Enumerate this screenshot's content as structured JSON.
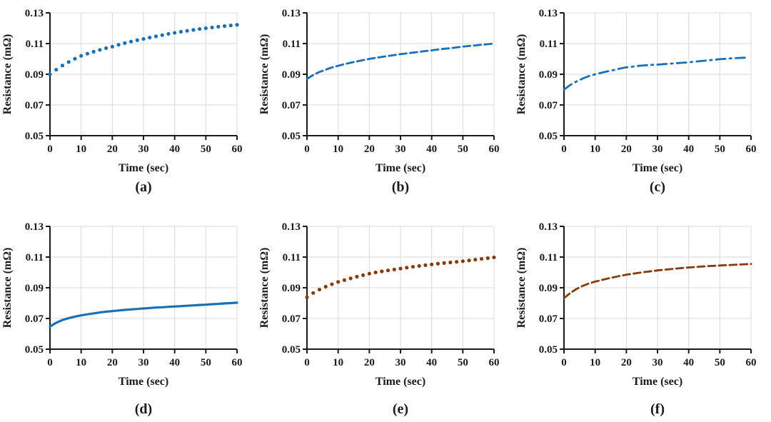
{
  "figure": {
    "background": "#ffffff",
    "text_color": "#1a1a1a",
    "grid_color": "#d9d9d9",
    "axis_color": "#1a1a1a"
  },
  "chart_data": [
    {
      "id": "a",
      "label": "(a)",
      "type": "line",
      "line_style": "dotted",
      "color": "#1b6fb5",
      "title": "",
      "xlabel": "Time (sec)",
      "ylabel": "Resistance (mΩ)",
      "xlim": [
        0,
        60
      ],
      "ylim": [
        0.05,
        0.13
      ],
      "xticks": [
        0,
        10,
        20,
        30,
        40,
        50,
        60
      ],
      "xtick_labels": [
        "0",
        "10",
        "20",
        "30",
        "40",
        "50",
        "60"
      ],
      "yticks": [
        0.05,
        0.07,
        0.09,
        0.11,
        0.13
      ],
      "ytick_labels": [
        "0.05",
        "0.07",
        "0.09",
        "0.11",
        "0.13"
      ],
      "grid": true,
      "legend": "none",
      "x": [
        0,
        2,
        4,
        6,
        8,
        10,
        12,
        14,
        16,
        18,
        20,
        22,
        24,
        26,
        28,
        30,
        32,
        34,
        36,
        38,
        40,
        42,
        44,
        46,
        48,
        50,
        52,
        54,
        56,
        58,
        60
      ],
      "y": [
        0.09,
        0.093,
        0.0957,
        0.098,
        0.1001,
        0.102,
        0.1034,
        0.1047,
        0.1059,
        0.107,
        0.108,
        0.1092,
        0.1103,
        0.1113,
        0.1122,
        0.113,
        0.1139,
        0.1147,
        0.1155,
        0.1163,
        0.117,
        0.1177,
        0.1183,
        0.1189,
        0.1195,
        0.12,
        0.1205,
        0.121,
        0.1214,
        0.1218,
        0.1222
      ]
    },
    {
      "id": "b",
      "label": "(b)",
      "type": "line",
      "line_style": "dashed",
      "color": "#1b6fb5",
      "title": "",
      "xlabel": "Time (sec)",
      "ylabel": "Resistance (mΩ)",
      "xlim": [
        0,
        60
      ],
      "ylim": [
        0.05,
        0.13
      ],
      "xticks": [
        0,
        10,
        20,
        30,
        40,
        50,
        60
      ],
      "xtick_labels": [
        "0",
        "10",
        "20",
        "30",
        "40",
        "50",
        "60"
      ],
      "yticks": [
        0.05,
        0.07,
        0.09,
        0.11,
        0.13
      ],
      "ytick_labels": [
        "0.05",
        "0.07",
        "0.09",
        "0.11",
        "0.13"
      ],
      "grid": true,
      "legend": "none",
      "x": [
        0,
        2,
        4,
        6,
        8,
        10,
        12,
        14,
        16,
        18,
        20,
        22,
        24,
        26,
        28,
        30,
        32,
        34,
        36,
        38,
        40,
        42,
        44,
        46,
        48,
        50,
        52,
        54,
        56,
        58,
        60
      ],
      "y": [
        0.087,
        0.0895,
        0.0915,
        0.093,
        0.0944,
        0.0955,
        0.0966,
        0.0975,
        0.0984,
        0.0992,
        0.1,
        0.1007,
        0.1013,
        0.1019,
        0.1025,
        0.1031,
        0.1036,
        0.1041,
        0.1046,
        0.1051,
        0.1056,
        0.1061,
        0.1066,
        0.107,
        0.1075,
        0.108,
        0.1084,
        0.1088,
        0.1092,
        0.1096,
        0.11
      ]
    },
    {
      "id": "c",
      "label": "(c)",
      "type": "line",
      "line_style": "dashdot",
      "color": "#1b6fb5",
      "title": "",
      "xlabel": "Time (sec)",
      "ylabel": "Resistance (mΩ)",
      "xlim": [
        0,
        60
      ],
      "ylim": [
        0.05,
        0.13
      ],
      "xticks": [
        0,
        10,
        20,
        30,
        40,
        50,
        60
      ],
      "xtick_labels": [
        "0",
        "10",
        "20",
        "30",
        "40",
        "50",
        "60"
      ],
      "yticks": [
        0.05,
        0.07,
        0.09,
        0.11,
        0.13
      ],
      "ytick_labels": [
        "0.05",
        "0.07",
        "0.09",
        "0.11",
        "0.13"
      ],
      "grid": true,
      "legend": "none",
      "x": [
        0,
        2,
        4,
        6,
        8,
        10,
        12,
        14,
        16,
        18,
        20,
        22,
        24,
        26,
        28,
        30,
        32,
        34,
        36,
        38,
        40,
        42,
        44,
        46,
        48,
        50,
        52,
        54,
        56,
        58
      ],
      "y": [
        0.08,
        0.083,
        0.0853,
        0.0872,
        0.0888,
        0.09,
        0.091,
        0.0919,
        0.0928,
        0.0937,
        0.0945,
        0.095,
        0.0955,
        0.0958,
        0.0961,
        0.0963,
        0.0966,
        0.0969,
        0.0972,
        0.0975,
        0.0978,
        0.0982,
        0.0986,
        0.099,
        0.0994,
        0.0998,
        0.1001,
        0.1004,
        0.1006,
        0.1008
      ]
    },
    {
      "id": "d",
      "label": "(d)",
      "type": "line",
      "line_style": "solid",
      "color": "#1b6fb5",
      "title": "",
      "xlabel": "Time (sec)",
      "ylabel": "Resistance (mΩ)",
      "xlim": [
        0,
        60
      ],
      "ylim": [
        0.05,
        0.13
      ],
      "xticks": [
        0,
        10,
        20,
        30,
        40,
        50,
        60
      ],
      "xtick_labels": [
        "0",
        "10",
        "20",
        "30",
        "40",
        "50",
        "60"
      ],
      "yticks": [
        0.05,
        0.07,
        0.09,
        0.11,
        0.13
      ],
      "ytick_labels": [
        "0.05",
        "0.07",
        "0.09",
        "0.11",
        "0.13"
      ],
      "grid": true,
      "legend": "none",
      "x": [
        0,
        2,
        4,
        6,
        8,
        10,
        12,
        14,
        16,
        18,
        20,
        22,
        24,
        26,
        28,
        30,
        32,
        34,
        36,
        38,
        40,
        42,
        44,
        46,
        48,
        50,
        52,
        54,
        56,
        58,
        60
      ],
      "y": [
        0.0648,
        0.0672,
        0.069,
        0.0702,
        0.0712,
        0.072,
        0.0727,
        0.0733,
        0.0739,
        0.0744,
        0.0748,
        0.0752,
        0.0756,
        0.0759,
        0.0762,
        0.0765,
        0.0768,
        0.0771,
        0.0773,
        0.0776,
        0.0778,
        0.078,
        0.0783,
        0.0785,
        0.0788,
        0.079,
        0.0793,
        0.0795,
        0.0798,
        0.08,
        0.0803
      ]
    },
    {
      "id": "e",
      "label": "(e)",
      "type": "line",
      "line_style": "dotted",
      "color": "#843c0c",
      "title": "",
      "xlabel": "Time (sec)",
      "ylabel": "Resistance (mΩ)",
      "xlim": [
        0,
        60
      ],
      "ylim": [
        0.05,
        0.13
      ],
      "xticks": [
        0,
        10,
        20,
        30,
        40,
        50,
        60
      ],
      "xtick_labels": [
        "0",
        "10",
        "20",
        "30",
        "40",
        "50",
        "60"
      ],
      "yticks": [
        0.05,
        0.07,
        0.09,
        0.11,
        0.13
      ],
      "ytick_labels": [
        "0.05",
        "0.07",
        "0.09",
        "0.11",
        "0.13"
      ],
      "grid": true,
      "legend": "none",
      "x": [
        0,
        2,
        4,
        6,
        8,
        10,
        12,
        14,
        16,
        18,
        20,
        22,
        24,
        26,
        28,
        30,
        32,
        34,
        36,
        38,
        40,
        42,
        44,
        46,
        48,
        50,
        52,
        54,
        56,
        58,
        60
      ],
      "y": [
        0.0838,
        0.0866,
        0.0888,
        0.0907,
        0.0923,
        0.0938,
        0.095,
        0.0961,
        0.0972,
        0.0982,
        0.0992,
        0.1,
        0.1007,
        0.1013,
        0.1019,
        0.1025,
        0.1031,
        0.1037,
        0.1042,
        0.1047,
        0.1052,
        0.1057,
        0.1061,
        0.1065,
        0.1069,
        0.1073,
        0.1078,
        0.1083,
        0.1088,
        0.1093,
        0.1098
      ]
    },
    {
      "id": "f",
      "label": "(f)",
      "type": "line",
      "line_style": "dashed",
      "color": "#843c0c",
      "title": "",
      "xlabel": "Time (sec)",
      "ylabel": "Resistance (mΩ)",
      "xlim": [
        0,
        60
      ],
      "ylim": [
        0.05,
        0.13
      ],
      "xticks": [
        0,
        10,
        20,
        30,
        40,
        50,
        60
      ],
      "xtick_labels": [
        "0",
        "10",
        "20",
        "30",
        "40",
        "50",
        "60"
      ],
      "yticks": [
        0.05,
        0.07,
        0.09,
        0.11,
        0.13
      ],
      "ytick_labels": [
        "0.05",
        "0.07",
        "0.09",
        "0.11",
        "0.13"
      ],
      "grid": true,
      "legend": "none",
      "x": [
        0,
        2,
        4,
        6,
        8,
        10,
        12,
        14,
        16,
        18,
        20,
        22,
        24,
        26,
        28,
        30,
        32,
        34,
        36,
        38,
        40,
        42,
        44,
        46,
        48,
        50,
        52,
        54,
        56,
        58,
        60
      ],
      "y": [
        0.0832,
        0.0865,
        0.0892,
        0.0912,
        0.0928,
        0.094,
        0.095,
        0.096,
        0.0969,
        0.0977,
        0.0985,
        0.0991,
        0.0997,
        0.1003,
        0.1008,
        0.1013,
        0.1017,
        0.1021,
        0.1025,
        0.1029,
        0.1032,
        0.1035,
        0.1038,
        0.1041,
        0.1043,
        0.1045,
        0.1047,
        0.1049,
        0.1051,
        0.1053,
        0.1055
      ]
    }
  ]
}
